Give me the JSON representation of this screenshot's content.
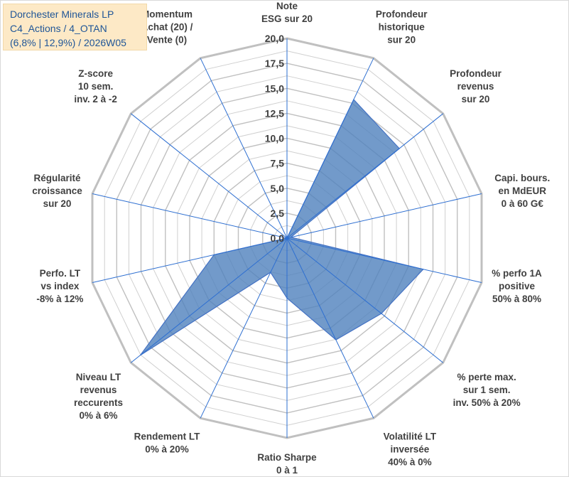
{
  "title_box": {
    "line1": "Dorchester Minerals LP",
    "line2": "C4_Actions / 4_OTAN",
    "line3": "(6,8% | 12,9%) / 2026W05"
  },
  "colors": {
    "fill": "#4f81bd",
    "stroke": "#4472c4",
    "grid": "#d0d0d0",
    "ring_major": "#c0c0c0",
    "spoke": "#2e6fd1",
    "text": "#404040",
    "title_bg": "#fde9c6",
    "title_text": "#1f5597"
  },
  "chart_data": {
    "type": "radar",
    "ylim": [
      0,
      20
    ],
    "major_tick_step": 2.5,
    "minor_tick_step": 1.25,
    "tick_labels": [
      "0,0",
      "2,5",
      "5,0",
      "7,5",
      "10,0",
      "12,5",
      "15,0",
      "17,5",
      "20,0"
    ],
    "grid": true,
    "legend": "none",
    "categories": [
      [
        "Note",
        "ESG sur 20"
      ],
      [
        "Profondeur",
        "historique",
        "sur 20"
      ],
      [
        "Profondeur",
        "revenus",
        "sur 20"
      ],
      [
        "Capi. bours.",
        "en MdEUR",
        "0 à 60 G€"
      ],
      [
        "% perfo 1A",
        "positive",
        "50% à 80%"
      ],
      [
        "% perte max.",
        "sur 1 sem.",
        "inv. 50% à 20%"
      ],
      [
        "Volatilité LT",
        "inversée",
        "40% à 0%"
      ],
      [
        "Ratio Sharpe",
        "0 à 1"
      ],
      [
        "Rendement LT",
        "0% à 20%"
      ],
      [
        "Niveau LT",
        "revenus",
        "reccurents",
        "0% à 6%"
      ],
      [
        "Perfo. LT",
        "vs index",
        "-8% à 12%"
      ],
      [
        "Régularité",
        "croissance",
        "sur 20"
      ],
      [
        "Z-score",
        "10 sem.",
        "inv. 2 à -2"
      ],
      [
        "Momentum",
        "Achat (20) /",
        "Vente (0)"
      ]
    ],
    "series": [
      {
        "values": [
          0,
          15.4,
          14.4,
          0.4,
          14.0,
          12.1,
          11.3,
          6.0,
          3.8,
          18.8,
          7.5,
          0,
          0,
          0
        ]
      }
    ]
  }
}
